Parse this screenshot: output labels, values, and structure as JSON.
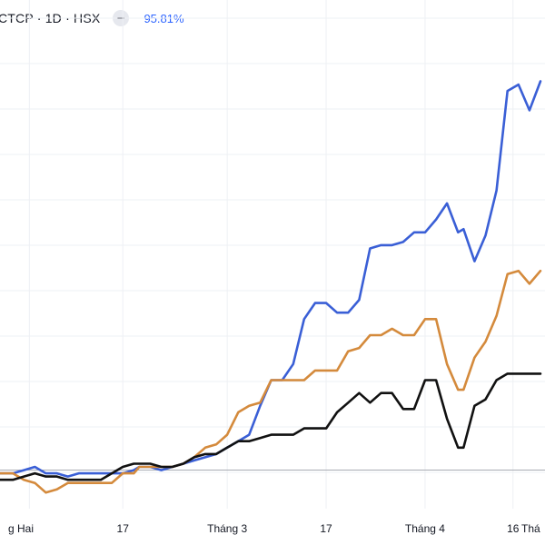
{
  "legend": {
    "title": "CTCP · 1D · HSX",
    "percent": "95.81%",
    "icon": "minus-icon"
  },
  "chart_data": {
    "type": "line",
    "title": "",
    "xlabel": "",
    "ylabel": "",
    "grid": true,
    "baseline_value": 0,
    "x_range": [
      0,
      100
    ],
    "ylim": [
      -12,
      135
    ],
    "x_ticks": [
      {
        "label": "g Hai",
        "x": 7
      },
      {
        "label": "17",
        "x": 24
      },
      {
        "label": "Tháng 3",
        "x": 43
      },
      {
        "label": "17",
        "x": 61
      },
      {
        "label": "Tháng 4",
        "x": 79
      },
      {
        "label": "16",
        "x": 95
      },
      {
        "label": "Thá",
        "x": 112
      }
    ],
    "series": [
      {
        "color": "#3a5fd6",
        "points": [
          [
            0,
            -1
          ],
          [
            4,
            -1
          ],
          [
            6,
            0
          ],
          [
            8,
            1
          ],
          [
            10,
            -1
          ],
          [
            12,
            -1
          ],
          [
            14,
            -2
          ],
          [
            16,
            -1
          ],
          [
            18,
            -1
          ],
          [
            20,
            -1
          ],
          [
            22,
            -1
          ],
          [
            24,
            -1
          ],
          [
            26,
            0
          ],
          [
            27,
            1
          ],
          [
            29,
            1
          ],
          [
            31,
            0
          ],
          [
            33,
            1
          ],
          [
            35,
            2
          ],
          [
            37,
            3
          ],
          [
            39,
            4
          ],
          [
            41,
            5
          ],
          [
            43,
            7
          ],
          [
            45,
            9
          ],
          [
            47,
            11
          ],
          [
            49,
            20
          ],
          [
            51,
            28
          ],
          [
            53,
            28
          ],
          [
            55,
            33
          ],
          [
            57,
            47
          ],
          [
            59,
            52
          ],
          [
            61,
            52
          ],
          [
            63,
            49
          ],
          [
            65,
            49
          ],
          [
            67,
            53
          ],
          [
            69,
            69
          ],
          [
            71,
            70
          ],
          [
            73,
            70
          ],
          [
            75,
            71
          ],
          [
            77,
            74
          ],
          [
            79,
            74
          ],
          [
            81,
            78
          ],
          [
            83,
            83
          ],
          [
            85,
            74
          ],
          [
            86,
            75
          ],
          [
            88,
            65
          ],
          [
            90,
            73
          ],
          [
            92,
            87
          ],
          [
            94,
            118
          ],
          [
            96,
            120
          ],
          [
            98,
            112
          ],
          [
            100,
            121
          ]
        ]
      },
      {
        "color": "#d48a3c",
        "points": [
          [
            0,
            -1
          ],
          [
            4,
            -1
          ],
          [
            6,
            -3
          ],
          [
            8,
            -4
          ],
          [
            10,
            -7
          ],
          [
            12,
            -6
          ],
          [
            14,
            -4
          ],
          [
            16,
            -4
          ],
          [
            18,
            -4
          ],
          [
            20,
            -4
          ],
          [
            22,
            -4
          ],
          [
            24,
            -1
          ],
          [
            26,
            -1
          ],
          [
            27,
            1
          ],
          [
            29,
            1
          ],
          [
            31,
            1
          ],
          [
            33,
            1
          ],
          [
            35,
            2
          ],
          [
            37,
            4
          ],
          [
            39,
            7
          ],
          [
            41,
            8
          ],
          [
            43,
            11
          ],
          [
            45,
            18
          ],
          [
            47,
            20
          ],
          [
            49,
            21
          ],
          [
            51,
            28
          ],
          [
            53,
            28
          ],
          [
            55,
            28
          ],
          [
            57,
            28
          ],
          [
            59,
            31
          ],
          [
            61,
            31
          ],
          [
            63,
            31
          ],
          [
            65,
            37
          ],
          [
            67,
            38
          ],
          [
            69,
            42
          ],
          [
            71,
            42
          ],
          [
            73,
            44
          ],
          [
            75,
            42
          ],
          [
            77,
            42
          ],
          [
            79,
            47
          ],
          [
            81,
            47
          ],
          [
            83,
            33
          ],
          [
            85,
            25
          ],
          [
            86,
            25
          ],
          [
            88,
            35
          ],
          [
            90,
            40
          ],
          [
            92,
            48
          ],
          [
            94,
            61
          ],
          [
            96,
            62
          ],
          [
            98,
            58
          ],
          [
            100,
            62
          ]
        ]
      },
      {
        "color": "#111111",
        "points": [
          [
            0,
            -3
          ],
          [
            4,
            -3
          ],
          [
            6,
            -2
          ],
          [
            8,
            -1
          ],
          [
            10,
            -2
          ],
          [
            12,
            -2
          ],
          [
            14,
            -3
          ],
          [
            16,
            -3
          ],
          [
            18,
            -3
          ],
          [
            20,
            -3
          ],
          [
            22,
            -1
          ],
          [
            24,
            1
          ],
          [
            26,
            2
          ],
          [
            27,
            2
          ],
          [
            29,
            2
          ],
          [
            31,
            1
          ],
          [
            33,
            1
          ],
          [
            35,
            2
          ],
          [
            37,
            4
          ],
          [
            39,
            5
          ],
          [
            41,
            5
          ],
          [
            43,
            7
          ],
          [
            45,
            9
          ],
          [
            47,
            9
          ],
          [
            49,
            10
          ],
          [
            51,
            11
          ],
          [
            53,
            11
          ],
          [
            55,
            11
          ],
          [
            57,
            13
          ],
          [
            59,
            13
          ],
          [
            61,
            13
          ],
          [
            63,
            18
          ],
          [
            65,
            21
          ],
          [
            67,
            24
          ],
          [
            69,
            21
          ],
          [
            71,
            24
          ],
          [
            73,
            24
          ],
          [
            75,
            19
          ],
          [
            77,
            19
          ],
          [
            79,
            28
          ],
          [
            81,
            28
          ],
          [
            83,
            16
          ],
          [
            85,
            7
          ],
          [
            86,
            7
          ],
          [
            88,
            20
          ],
          [
            90,
            22
          ],
          [
            92,
            28
          ],
          [
            94,
            30
          ],
          [
            96,
            30
          ],
          [
            98,
            30
          ],
          [
            100,
            30
          ]
        ]
      }
    ]
  }
}
